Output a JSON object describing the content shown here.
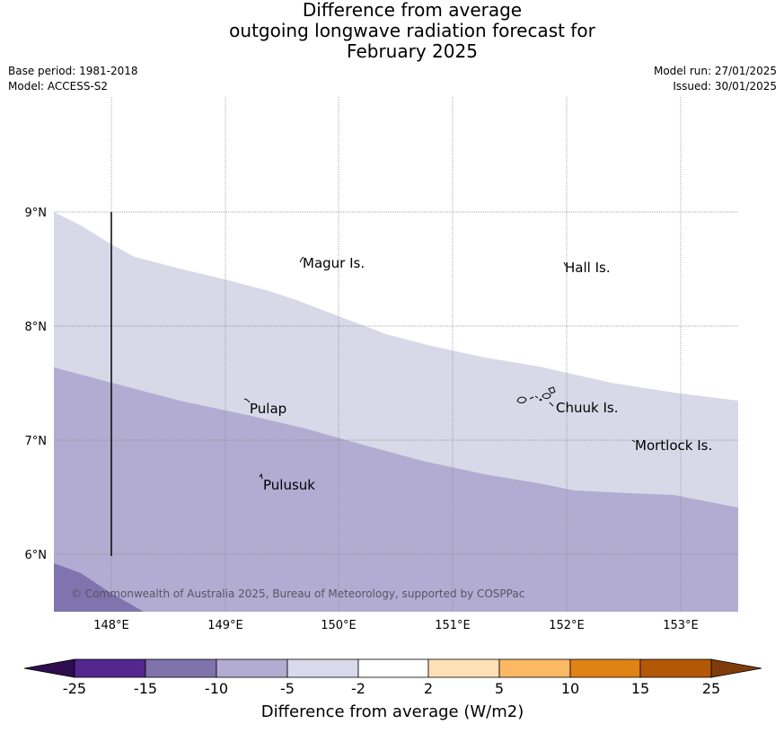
{
  "title": {
    "line1": "Difference from average",
    "line2": "outgoing longwave radiation forecast for",
    "line3": "February 2025"
  },
  "info": {
    "base_period": "Base period: 1981-2018",
    "model": "Model: ACCESS-S2",
    "model_run": "Model run: 27/01/2025",
    "issued": "Issued: 30/01/2025"
  },
  "map": {
    "lon_ticks": [
      "148°E",
      "149°E",
      "150°E",
      "151°E",
      "152°E",
      "153°E"
    ],
    "lat_ticks": [
      "9°N",
      "8°N",
      "7°N",
      "6°N"
    ],
    "places": {
      "magur": "Magur Is.",
      "hall": "Hall Is.",
      "pulap": "Pulap",
      "chuuk": "Chuuk Is.",
      "mortlock": "Mortlock Is.",
      "pulusuk": "Pulusuk"
    },
    "copyright": "© Commonwealth of Australia 2025, Bureau of Meteorology, supported by COSPPac",
    "colors": {
      "band_neg5_neg2": "#d8d8e9",
      "band_neg10_neg5": "#b2acd2",
      "band_neg15_neg10": "#8074ae",
      "grid": "#888888"
    }
  },
  "legend": {
    "label": "Difference from average (W/m2)",
    "ticks": [
      "-25",
      "-15",
      "-10",
      "-5",
      "-2",
      "2",
      "5",
      "10",
      "15",
      "25"
    ],
    "colors": {
      "extend_low": "#2d0e4f",
      "c1": "#54278f",
      "c2": "#8073ac",
      "c3": "#b2abd2",
      "c4": "#d8daeb",
      "c5": "#ffffff",
      "c6": "#fee0b6",
      "c7": "#fdb863",
      "c8": "#e08214",
      "c9": "#b35806",
      "extend_high": "#7f3b08"
    }
  }
}
